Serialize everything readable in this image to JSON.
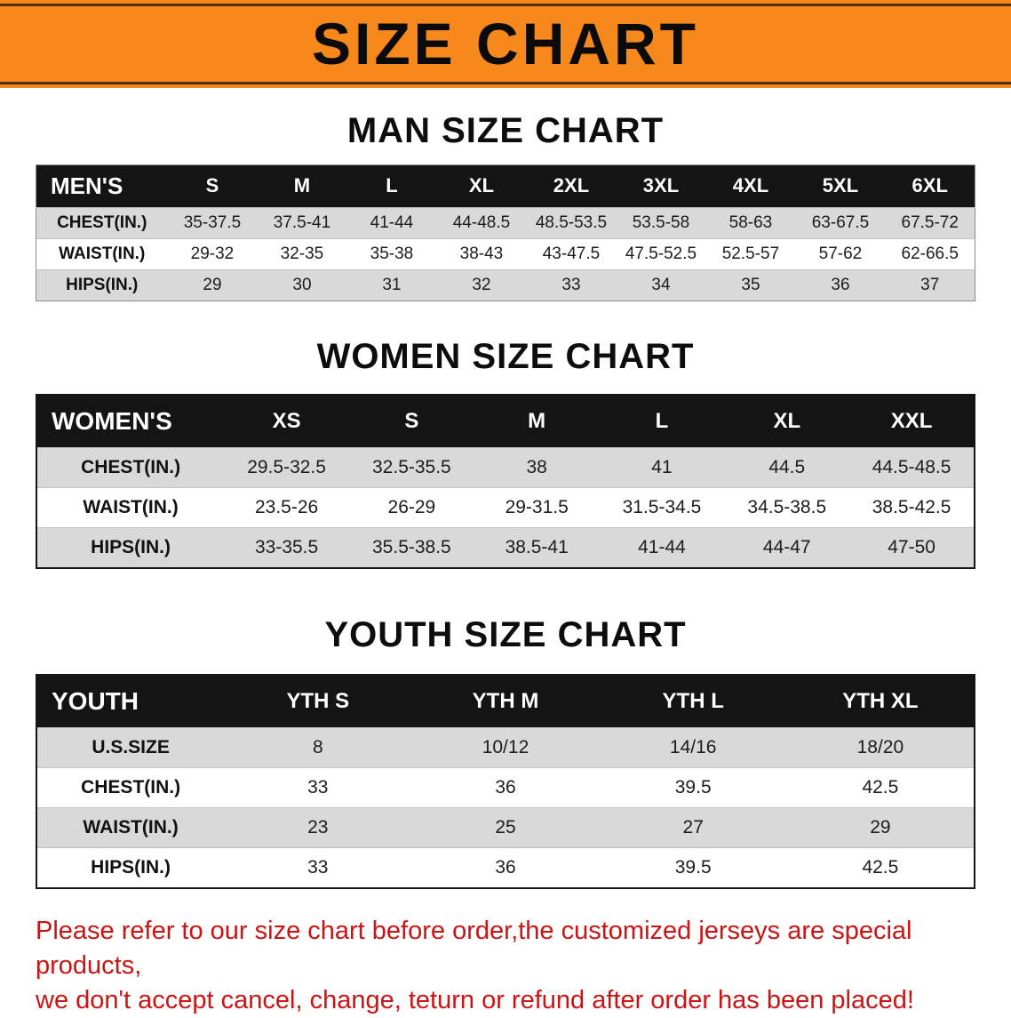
{
  "banner": {
    "title": "SIZE CHART"
  },
  "men": {
    "heading": "MAN SIZE CHART",
    "label": "MEN'S",
    "sizes": [
      "S",
      "M",
      "L",
      "XL",
      "2XL",
      "3XL",
      "4XL",
      "5XL",
      "6XL"
    ],
    "rows": [
      {
        "label": "CHEST(IN.)",
        "values": [
          "35-37.5",
          "37.5-41",
          "41-44",
          "44-48.5",
          "48.5-53.5",
          "53.5-58",
          "58-63",
          "63-67.5",
          "67.5-72"
        ]
      },
      {
        "label": "WAIST(IN.)",
        "values": [
          "29-32",
          "32-35",
          "35-38",
          "38-43",
          "43-47.5",
          "47.5-52.5",
          "52.5-57",
          "57-62",
          "62-66.5"
        ]
      },
      {
        "label": "HIPS(IN.)",
        "values": [
          "29",
          "30",
          "31",
          "32",
          "33",
          "34",
          "35",
          "36",
          "37"
        ]
      }
    ]
  },
  "women": {
    "heading": "WOMEN SIZE CHART",
    "label": "WOMEN'S",
    "sizes": [
      "XS",
      "S",
      "M",
      "L",
      "XL",
      "XXL"
    ],
    "rows": [
      {
        "label": "CHEST(IN.)",
        "values": [
          "29.5-32.5",
          "32.5-35.5",
          "38",
          "41",
          "44.5",
          "44.5-48.5"
        ]
      },
      {
        "label": "WAIST(IN.)",
        "values": [
          "23.5-26",
          "26-29",
          "29-31.5",
          "31.5-34.5",
          "34.5-38.5",
          "38.5-42.5"
        ]
      },
      {
        "label": "HIPS(IN.)",
        "values": [
          "33-35.5",
          "35.5-38.5",
          "38.5-41",
          "41-44",
          "44-47",
          "47-50"
        ]
      }
    ]
  },
  "youth": {
    "heading": "YOUTH SIZE CHART",
    "label": "YOUTH",
    "sizes": [
      "YTH S",
      "YTH M",
      "YTH L",
      "YTH XL"
    ],
    "rows": [
      {
        "label": "U.S.SIZE",
        "values": [
          "8",
          "10/12",
          "14/16",
          "18/20"
        ]
      },
      {
        "label": "CHEST(IN.)",
        "values": [
          "33",
          "36",
          "39.5",
          "42.5"
        ]
      },
      {
        "label": "WAIST(IN.)",
        "values": [
          "23",
          "25",
          "27",
          "29"
        ]
      },
      {
        "label": "HIPS(IN.)",
        "values": [
          "33",
          "36",
          "39.5",
          "42.5"
        ]
      }
    ]
  },
  "disclaimer": {
    "line1": "Please refer to our size chart before order,the customized jerseys are special products,",
    "line2": "we don't accept cancel, change, teturn or refund after order has been placed!"
  },
  "colors": {
    "banner_orange": "#f6881c",
    "banner_edge_brown": "#53300a",
    "table_header_black": "#141414",
    "row_gray": "#d9d9d9",
    "disclaimer_red": "#cc1414"
  }
}
